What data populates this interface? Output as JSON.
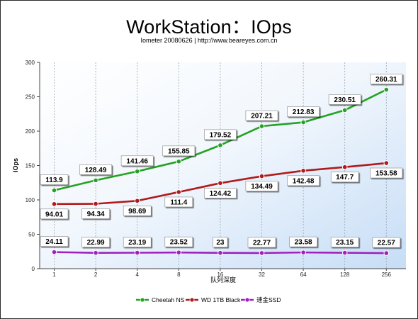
{
  "title": "WorkStation：IOps",
  "subtitle": "Iometer 20080626 | http://www.beareyes.com.cn",
  "chart_data": {
    "type": "line",
    "title": "WorkStation：IOps",
    "subtitle": "Iometer 20080626 | http://www.beareyes.com.cn",
    "xlabel": "队列深度",
    "ylabel": "IOps",
    "categories": [
      "1",
      "2",
      "4",
      "8",
      "16",
      "32",
      "64",
      "128",
      "256"
    ],
    "ylim": [
      0,
      300
    ],
    "yticks": [
      "0",
      "50",
      "100",
      "150",
      "200",
      "250",
      "300"
    ],
    "grid": "vertical dashed",
    "legend_position": "bottom",
    "series": [
      {
        "name": "Cheetah NS",
        "color": "#22a322",
        "values": [
          113.9,
          128.49,
          141.46,
          155.85,
          179.52,
          207.21,
          212.83,
          230.51,
          260.31
        ],
        "labels": [
          "113.9",
          "128.49",
          "141.46",
          "155.85",
          "179.52",
          "207.21",
          "212.83",
          "230.51",
          "260.31"
        ]
      },
      {
        "name": "WD 1TB Black",
        "color": "#b01a1a",
        "values": [
          94.01,
          94.34,
          98.69,
          111.4,
          124.42,
          134.49,
          142.48,
          147.7,
          153.58
        ],
        "labels": [
          "94.01",
          "94.34",
          "98.69",
          "111.4",
          "124.42",
          "134.49",
          "142.48",
          "147.7",
          "153.58"
        ]
      },
      {
        "name": "速金SSD",
        "color": "#a020c0",
        "values": [
          24.11,
          22.99,
          23.19,
          23.52,
          23,
          22.77,
          23.58,
          23.15,
          22.57
        ],
        "labels": [
          "24.11",
          "22.99",
          "23.19",
          "23.52",
          "23",
          "22.77",
          "23.58",
          "23.15",
          "22.57"
        ]
      }
    ]
  }
}
